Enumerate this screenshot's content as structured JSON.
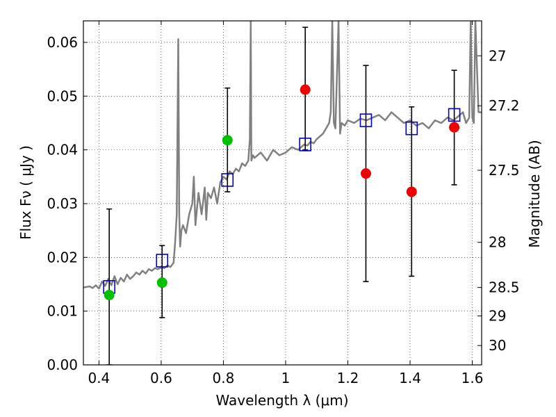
{
  "chart_data": {
    "type": "scatter",
    "xlabel": "Wavelength  λ (μm)",
    "ylabel": "Flux  Fν  ( μJy )",
    "ylabel_right": "Magnitude (AB)",
    "xlim": [
      0.35,
      1.63
    ],
    "ylim": [
      0.0,
      0.064
    ],
    "grid": true,
    "x_ticks": [
      0.4,
      0.6,
      0.8,
      1.0,
      1.2,
      1.4,
      1.6
    ],
    "x_tick_labels": [
      "0.4",
      "0.6",
      "0.8",
      "1",
      "1.2",
      "1.4",
      "1.6"
    ],
    "y_ticks": [
      0.0,
      0.01,
      0.02,
      0.03,
      0.04,
      0.05,
      0.06
    ],
    "y_tick_labels": [
      "0.00",
      "0.01",
      "0.02",
      "0.03",
      "0.04",
      "0.05",
      "0.06"
    ],
    "right_ticks": [
      {
        "flux": 0.0575,
        "label": "27"
      },
      {
        "flux": 0.0482,
        "label": "27.2"
      },
      {
        "flux": 0.0362,
        "label": "27.5"
      },
      {
        "flux": 0.0228,
        "label": "28"
      },
      {
        "flux": 0.0144,
        "label": "28.5"
      },
      {
        "flux": 0.0091,
        "label": "29"
      },
      {
        "flux": 0.0036,
        "label": "30"
      }
    ],
    "series": [
      {
        "kind": "line",
        "color": "#808080",
        "x": [
          0.35,
          0.37,
          0.38,
          0.39,
          0.4,
          0.41,
          0.42,
          0.43,
          0.44,
          0.45,
          0.46,
          0.47,
          0.48,
          0.49,
          0.5,
          0.51,
          0.52,
          0.53,
          0.54,
          0.55,
          0.56,
          0.57,
          0.58,
          0.59,
          0.6,
          0.61,
          0.62,
          0.63,
          0.64,
          0.645,
          0.65,
          0.655,
          0.658,
          0.661,
          0.665,
          0.67,
          0.68,
          0.69,
          0.7,
          0.705,
          0.71,
          0.72,
          0.73,
          0.74,
          0.745,
          0.75,
          0.76,
          0.77,
          0.78,
          0.79,
          0.8,
          0.81,
          0.82,
          0.83,
          0.84,
          0.85,
          0.86,
          0.87,
          0.88,
          0.885,
          0.888,
          0.89,
          0.895,
          0.9,
          0.92,
          0.94,
          0.96,
          0.98,
          1.0,
          1.02,
          1.04,
          1.06,
          1.07,
          1.08,
          1.09,
          1.1,
          1.11,
          1.12,
          1.13,
          1.14,
          1.145,
          1.15,
          1.155,
          1.16,
          1.17,
          1.175,
          1.18,
          1.19,
          1.2,
          1.22,
          1.24,
          1.26,
          1.28,
          1.3,
          1.32,
          1.34,
          1.36,
          1.38,
          1.4,
          1.42,
          1.44,
          1.46,
          1.48,
          1.5,
          1.52,
          1.54,
          1.56,
          1.57,
          1.58,
          1.59,
          1.595,
          1.6,
          1.605,
          1.61,
          1.62,
          1.63
        ],
        "y": [
          0.0144,
          0.0146,
          0.0143,
          0.0148,
          0.0142,
          0.0155,
          0.0147,
          0.016,
          0.0148,
          0.0165,
          0.015,
          0.0162,
          0.0155,
          0.0168,
          0.016,
          0.0165,
          0.0172,
          0.0168,
          0.0175,
          0.017,
          0.0178,
          0.0175,
          0.018,
          0.0178,
          0.0182,
          0.018,
          0.0185,
          0.0182,
          0.019,
          0.023,
          0.028,
          0.0606,
          0.028,
          0.022,
          0.025,
          0.026,
          0.0245,
          0.028,
          0.03,
          0.035,
          0.026,
          0.032,
          0.028,
          0.033,
          0.027,
          0.032,
          0.031,
          0.033,
          0.03,
          0.034,
          0.035,
          0.0345,
          0.036,
          0.0355,
          0.0365,
          0.036,
          0.0375,
          0.037,
          0.038,
          0.042,
          0.064,
          0.038,
          0.039,
          0.0385,
          0.0395,
          0.038,
          0.04,
          0.039,
          0.0395,
          0.0405,
          0.04,
          0.041,
          0.0408,
          0.0415,
          0.0412,
          0.042,
          0.0425,
          0.043,
          0.044,
          0.045,
          0.047,
          0.064,
          0.045,
          0.044,
          0.064,
          0.043,
          0.045,
          0.0445,
          0.0455,
          0.045,
          0.0458,
          0.0455,
          0.046,
          0.0465,
          0.0455,
          0.047,
          0.046,
          0.045,
          0.0455,
          0.0445,
          0.045,
          0.044,
          0.0455,
          0.045,
          0.046,
          0.0455,
          0.0465,
          0.047,
          0.045,
          0.046,
          0.064,
          0.046,
          0.045,
          0.064,
          0.047,
          0.047
        ]
      },
      {
        "kind": "errorbar",
        "color": "#000000",
        "x": [
          0.433,
          0.603,
          0.813,
          1.063,
          1.258,
          1.405,
          1.542
        ],
        "low": [
          0.0,
          0.0088,
          0.0322,
          0.04,
          0.0155,
          0.0165,
          0.0335
        ],
        "high": [
          0.029,
          0.0222,
          0.0515,
          0.0628,
          0.0557,
          0.048,
          0.0548
        ]
      },
      {
        "kind": "open-square",
        "color": "#0000cc",
        "x": [
          0.433,
          0.603,
          0.813,
          1.063,
          1.258,
          1.405,
          1.542
        ],
        "y": [
          0.0145,
          0.0194,
          0.0344,
          0.041,
          0.0455,
          0.044,
          0.0465
        ]
      },
      {
        "kind": "filled-circle",
        "color": "#00c000",
        "x": [
          0.433,
          0.603,
          0.813
        ],
        "y": [
          0.013,
          0.0153,
          0.0418
        ]
      },
      {
        "kind": "filled-circle",
        "color": "#ee0000",
        "x": [
          1.063,
          1.258,
          1.405,
          1.542
        ],
        "y": [
          0.0512,
          0.0356,
          0.0322,
          0.0442
        ]
      }
    ]
  }
}
